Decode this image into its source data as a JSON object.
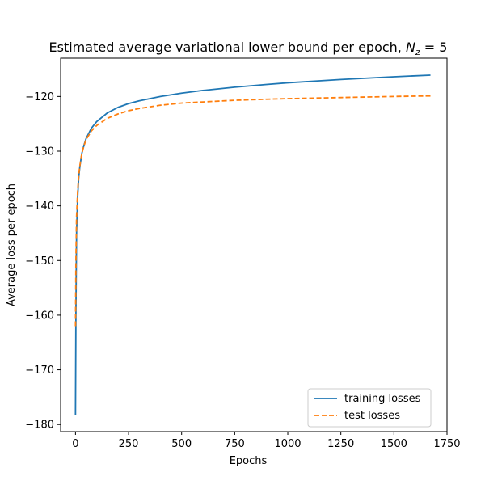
{
  "chart_data": {
    "type": "line",
    "title_main": "Estimated average variational lower bound per epoch, ",
    "title_symbol": "N",
    "title_subscript": "z",
    "title_suffix": " = 5",
    "xlabel": "Epochs",
    "ylabel": "Average loss per epoch",
    "xlim": [
      -70,
      1750
    ],
    "ylim": [
      -181.3,
      -113.0
    ],
    "xticks": [
      0,
      250,
      500,
      750,
      1000,
      1250,
      1500,
      1750
    ],
    "yticks": [
      -180,
      -170,
      -160,
      -150,
      -140,
      -130,
      -120
    ],
    "grid": false,
    "legend_position": "lower-right",
    "series": [
      {
        "name": "training losses",
        "color": "#1f77b4",
        "style": "solid",
        "x": [
          0,
          2,
          5,
          10,
          15,
          20,
          30,
          40,
          50,
          75,
          100,
          150,
          200,
          250,
          300,
          400,
          500,
          600,
          750,
          900,
          1000,
          1250,
          1500,
          1672
        ],
        "y": [
          -178.2,
          -160.0,
          -145.0,
          -138.5,
          -135.0,
          -133.0,
          -130.4,
          -128.9,
          -127.7,
          -125.8,
          -124.6,
          -123.0,
          -122.0,
          -121.3,
          -120.8,
          -120.0,
          -119.4,
          -118.9,
          -118.3,
          -117.8,
          -117.5,
          -116.9,
          -116.4,
          -116.1
        ]
      },
      {
        "name": "test losses",
        "color": "#ff7f0e",
        "style": "dashed",
        "x": [
          0,
          2,
          5,
          10,
          15,
          20,
          30,
          40,
          50,
          75,
          100,
          150,
          200,
          250,
          300,
          400,
          500,
          600,
          750,
          900,
          1000,
          1250,
          1500,
          1672
        ],
        "y": [
          -162.0,
          -150.0,
          -142.0,
          -137.5,
          -134.5,
          -132.8,
          -130.4,
          -129.0,
          -127.9,
          -126.3,
          -125.3,
          -124.0,
          -123.2,
          -122.6,
          -122.2,
          -121.6,
          -121.2,
          -121.0,
          -120.7,
          -120.5,
          -120.4,
          -120.2,
          -120.0,
          -119.9
        ]
      }
    ]
  }
}
